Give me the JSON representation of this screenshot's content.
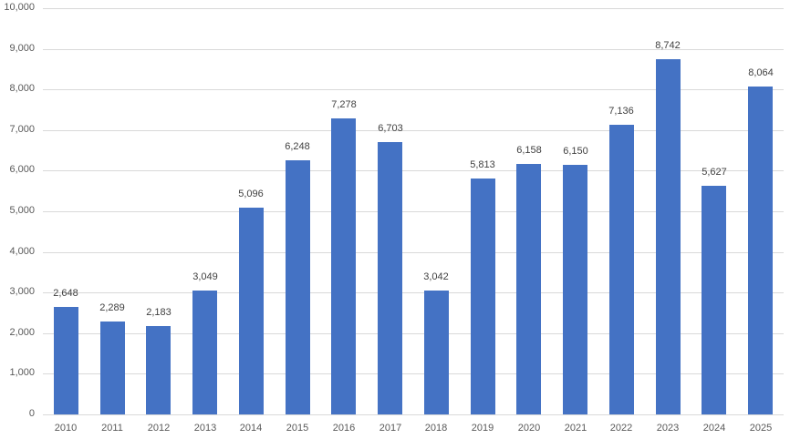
{
  "chart_data": {
    "type": "bar",
    "title": "",
    "xlabel": "",
    "ylabel": "",
    "categories": [
      "2010",
      "2011",
      "2012",
      "2013",
      "2014",
      "2015",
      "2016",
      "2017",
      "2018",
      "2019",
      "2020",
      "2021",
      "2022",
      "2023",
      "2024",
      "2025"
    ],
    "values": [
      2648,
      2289,
      2183,
      3049,
      5096,
      6248,
      7278,
      6703,
      3042,
      5813,
      6158,
      6150,
      7136,
      8742,
      5627,
      8064
    ],
    "data_labels": [
      "2,648",
      "2,289",
      "2,183",
      "3,049",
      "5,096",
      "6,248",
      "7,278",
      "6,703",
      "3,042",
      "5,813",
      "6,158",
      "6,150",
      "7,136",
      "8,742",
      "5,627",
      "8,064"
    ],
    "ylim": [
      0,
      10000
    ],
    "yticks": [
      0,
      1000,
      2000,
      3000,
      4000,
      5000,
      6000,
      7000,
      8000,
      9000,
      10000
    ],
    "ytick_labels": [
      "0",
      "1,000",
      "2,000",
      "3,000",
      "4,000",
      "5,000",
      "6,000",
      "7,000",
      "8,000",
      "9,000",
      "10,000"
    ],
    "grid": true,
    "legend": null,
    "bar_color": "#4472c4",
    "grid_color": "#d9d9d9"
  }
}
